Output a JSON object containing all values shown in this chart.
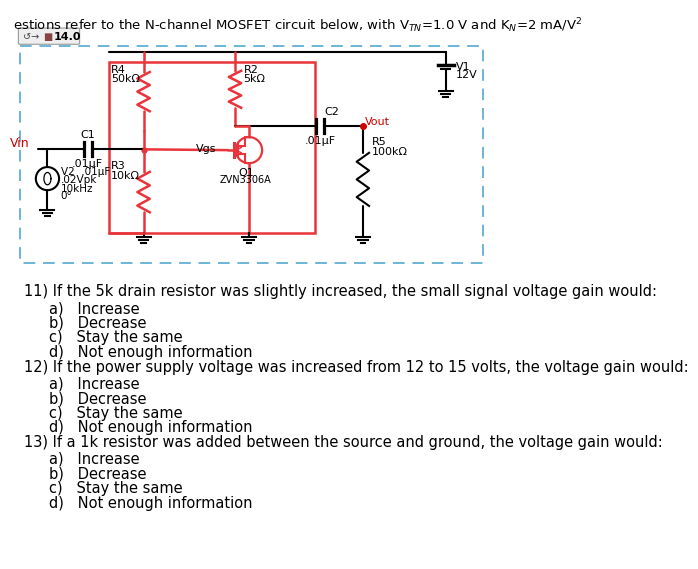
{
  "title_line": "estions refer to the N-channel MOSFET circuit below, with V_TN=1.0 V and K_N=2 mA/V^2",
  "bg_color": "#ffffff",
  "circuit_box_color": "#6bb5d6",
  "circuit_inner_color": "#e8343a",
  "toolbar_label": "14.0",
  "v1_label": "V1",
  "v1_value": "12V",
  "r2_label": "R2",
  "r2_value": "5kΩ",
  "r4_label": "R4",
  "r4_value": "50kΩ",
  "r3_label": "R3",
  "r3_value": "10kΩ",
  "r5_label": "R5",
  "r5_value": "100kΩ",
  "c2_label": "C2",
  "c2_value": ".01μF",
  "c1_label": "C1",
  "c1_value": ".01μF",
  "vin_label": "Vin",
  "vout_label": "Vout",
  "vgs_label": "Vgs",
  "v2_label": "V2",
  "v2_vpk": ".02Vpk",
  "v2_freq": "10kHz",
  "v2_phase": "0°",
  "q1_label": "Q1",
  "q1_model": "ZVN3306A",
  "questions": [
    {
      "number": "11)",
      "text": "If the 5k drain resistor was slightly increased, the small signal voltage gain would:",
      "options": [
        "a)   Increase",
        "b)   Decrease",
        "c)   Stay the same",
        "d)   Not enough information"
      ]
    },
    {
      "number": "12)",
      "text": "If the power supply voltage was increased from 12 to 15 volts, the voltage gain would:",
      "options": [
        "a)   Increase",
        "b)   Decrease",
        "c)   Stay the same",
        "d)   Not enough information"
      ]
    },
    {
      "number": "13)",
      "text": "If a 1k resistor was added between the source and ground, the voltage gain would:",
      "options": [
        "a)   Increase",
        "b)   Decrease",
        "c)   Stay the same",
        "d)   Not enough information"
      ]
    }
  ]
}
